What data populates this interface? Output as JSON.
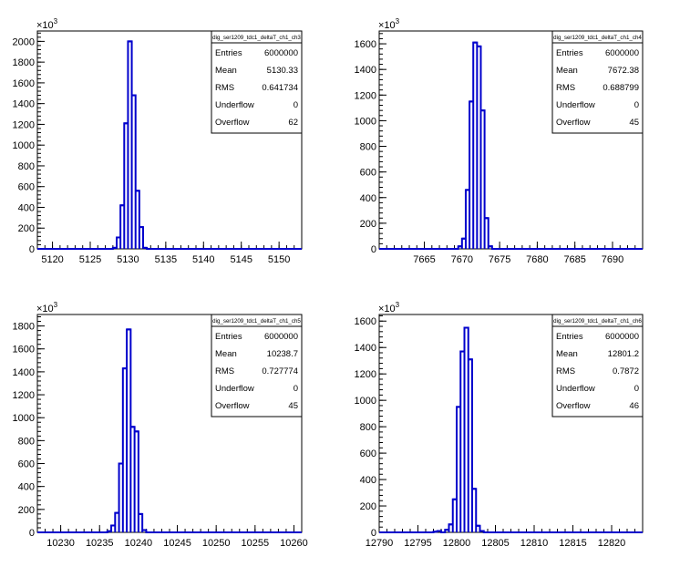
{
  "chart_data": [
    {
      "type": "histogram",
      "title": "",
      "stats_name": "dig_ser1209_tdc1_deltaT_ch1_ch3",
      "exponent_label": "×10",
      "exponent_power": "3",
      "xlim": [
        5118,
        5153
      ],
      "ylim": [
        0,
        2100
      ],
      "x_ticks": [
        5120,
        5125,
        5130,
        5135,
        5140,
        5145,
        5150
      ],
      "x_tick_labels": [
        "5120",
        "5125",
        "5130",
        "5135",
        "5140",
        "5145",
        "5150"
      ],
      "y_ticks": [
        0,
        200,
        400,
        600,
        800,
        1000,
        1200,
        1400,
        1600,
        1800,
        2000
      ],
      "y_tick_labels": [
        "0",
        "200",
        "400",
        "600",
        "800",
        "1000",
        "1200",
        "1400",
        "1600",
        "1800",
        "2000"
      ],
      "bin_width": 0.5,
      "bins": [
        {
          "x": 5128.0,
          "y": 10
        },
        {
          "x": 5128.5,
          "y": 110
        },
        {
          "x": 5129.0,
          "y": 420
        },
        {
          "x": 5129.5,
          "y": 1210
        },
        {
          "x": 5130.0,
          "y": 2000
        },
        {
          "x": 5130.5,
          "y": 1480
        },
        {
          "x": 5131.0,
          "y": 560
        },
        {
          "x": 5131.5,
          "y": 210
        },
        {
          "x": 5132.0,
          "y": 10
        }
      ],
      "stats": [
        {
          "label": "Entries",
          "value": "6000000"
        },
        {
          "label": "Mean",
          "value": "5130.33"
        },
        {
          "label": "RMS",
          "value": "0.641734"
        },
        {
          "label": "Underflow",
          "value": "0"
        },
        {
          "label": "Overflow",
          "value": "62"
        }
      ],
      "line_color": "#0000cc"
    },
    {
      "type": "histogram",
      "title": "",
      "stats_name": "dig_ser1209_tdc1_deltaT_ch1_ch4",
      "exponent_label": "×10",
      "exponent_power": "3",
      "xlim": [
        7659,
        7694
      ],
      "ylim": [
        0,
        1700
      ],
      "x_ticks": [
        7665,
        7670,
        7675,
        7680,
        7685,
        7690
      ],
      "x_tick_labels": [
        "7665",
        "7670",
        "7675",
        "7680",
        "7685",
        "7690"
      ],
      "y_ticks": [
        0,
        200,
        400,
        600,
        800,
        1000,
        1200,
        1400,
        1600
      ],
      "y_tick_labels": [
        "0",
        "200",
        "400",
        "600",
        "800",
        "1000",
        "1200",
        "1400",
        "1600"
      ],
      "bin_width": 0.5,
      "bins": [
        {
          "x": 7669.5,
          "y": 20
        },
        {
          "x": 7670.0,
          "y": 80
        },
        {
          "x": 7670.5,
          "y": 460
        },
        {
          "x": 7671.0,
          "y": 1150
        },
        {
          "x": 7671.5,
          "y": 1610
        },
        {
          "x": 7672.0,
          "y": 1580
        },
        {
          "x": 7672.5,
          "y": 1080
        },
        {
          "x": 7673.0,
          "y": 240
        },
        {
          "x": 7673.5,
          "y": 20
        }
      ],
      "stats": [
        {
          "label": "Entries",
          "value": "6000000"
        },
        {
          "label": "Mean",
          "value": "7672.38"
        },
        {
          "label": "RMS",
          "value": "0.688799"
        },
        {
          "label": "Underflow",
          "value": "0"
        },
        {
          "label": "Overflow",
          "value": "45"
        }
      ],
      "line_color": "#0000cc"
    },
    {
      "type": "histogram",
      "title": "",
      "stats_name": "dig_ser1209_tdc1_deltaT_ch1_ch5",
      "exponent_label": "×10",
      "exponent_power": "3",
      "xlim": [
        10227,
        10261
      ],
      "ylim": [
        0,
        1900
      ],
      "x_ticks": [
        10230,
        10235,
        10240,
        10245,
        10250,
        10255,
        10260
      ],
      "x_tick_labels": [
        "10230",
        "10235",
        "10240",
        "10245",
        "10250",
        "10255",
        "10260"
      ],
      "y_ticks": [
        0,
        200,
        400,
        600,
        800,
        1000,
        1200,
        1400,
        1600,
        1800
      ],
      "y_tick_labels": [
        "0",
        "200",
        "400",
        "600",
        "800",
        "1000",
        "1200",
        "1400",
        "1600",
        "1800"
      ],
      "bin_width": 0.5,
      "bins": [
        {
          "x": 10236.0,
          "y": 10
        },
        {
          "x": 10236.5,
          "y": 60
        },
        {
          "x": 10237.0,
          "y": 170
        },
        {
          "x": 10237.5,
          "y": 600
        },
        {
          "x": 10238.0,
          "y": 1430
        },
        {
          "x": 10238.5,
          "y": 1770
        },
        {
          "x": 10239.0,
          "y": 920
        },
        {
          "x": 10239.5,
          "y": 880
        },
        {
          "x": 10240.0,
          "y": 160
        },
        {
          "x": 10240.5,
          "y": 20
        }
      ],
      "stats": [
        {
          "label": "Entries",
          "value": "6000000"
        },
        {
          "label": "Mean",
          "value": "10238.7"
        },
        {
          "label": "RMS",
          "value": "0.727774"
        },
        {
          "label": "Underflow",
          "value": "0"
        },
        {
          "label": "Overflow",
          "value": "45"
        }
      ],
      "line_color": "#0000cc"
    },
    {
      "type": "histogram",
      "title": "",
      "stats_name": "dig_ser1209_tdc1_deltaT_ch1_ch6",
      "exponent_label": "×10",
      "exponent_power": "3",
      "xlim": [
        12790,
        12824
      ],
      "ylim": [
        0,
        1650
      ],
      "x_ticks": [
        12790,
        12795,
        12800,
        12805,
        12810,
        12815,
        12820
      ],
      "x_tick_labels": [
        "12790",
        "12795",
        "12800",
        "12805",
        "12810",
        "12815",
        "12820"
      ],
      "y_ticks": [
        0,
        200,
        400,
        600,
        800,
        1000,
        1200,
        1400,
        1600
      ],
      "y_tick_labels": [
        "0",
        "200",
        "400",
        "600",
        "800",
        "1000",
        "1200",
        "1400",
        "1600"
      ],
      "bin_width": 0.5,
      "bins": [
        {
          "x": 12797.0,
          "y": 5
        },
        {
          "x": 12797.5,
          "y": 10
        },
        {
          "x": 12798.5,
          "y": 20
        },
        {
          "x": 12799.0,
          "y": 60
        },
        {
          "x": 12799.5,
          "y": 250
        },
        {
          "x": 12800.0,
          "y": 950
        },
        {
          "x": 12800.5,
          "y": 1370
        },
        {
          "x": 12801.0,
          "y": 1550
        },
        {
          "x": 12801.5,
          "y": 1310
        },
        {
          "x": 12802.0,
          "y": 330
        },
        {
          "x": 12802.5,
          "y": 50
        },
        {
          "x": 12803.0,
          "y": 10
        }
      ],
      "stats": [
        {
          "label": "Entries",
          "value": "6000000"
        },
        {
          "label": "Mean",
          "value": "12801.2"
        },
        {
          "label": "RMS",
          "value": "0.7872"
        },
        {
          "label": "Underflow",
          "value": "0"
        },
        {
          "label": "Overflow",
          "value": "46"
        }
      ],
      "line_color": "#0000cc"
    }
  ]
}
